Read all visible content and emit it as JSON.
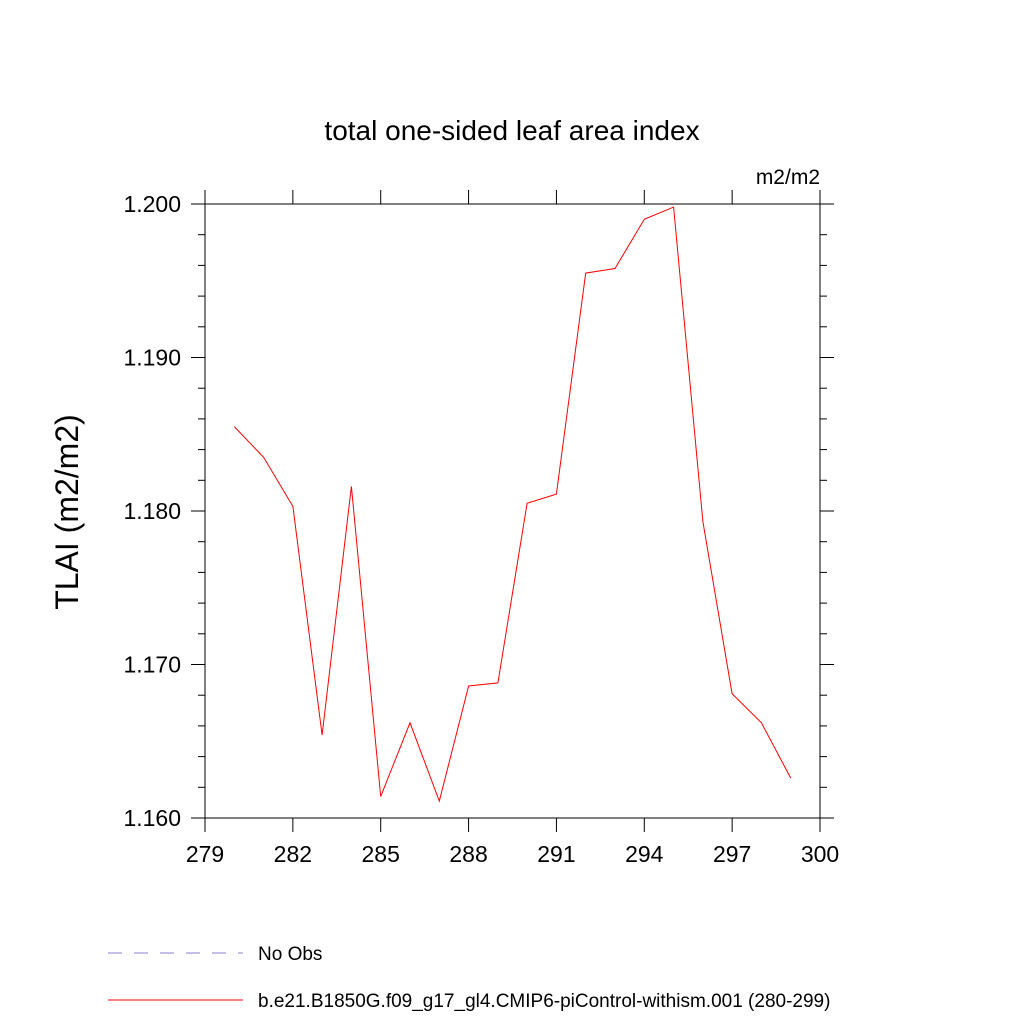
{
  "chart_data": {
    "type": "line",
    "title": "total one-sided leaf area index",
    "units_label": "m2/m2",
    "xlabel": "",
    "ylabel": "TLAI  (m2/m2)",
    "xlim": [
      279,
      300
    ],
    "ylim": [
      1.16,
      1.2
    ],
    "x_ticks": [
      279,
      282,
      285,
      288,
      291,
      294,
      297,
      300
    ],
    "y_ticks": [
      1.16,
      1.17,
      1.18,
      1.19,
      1.2
    ],
    "y_tick_labels": [
      "1.160",
      "1.170",
      "1.180",
      "1.190",
      "1.200"
    ],
    "grid": false,
    "legend_position": "bottom",
    "series": [
      {
        "name": "No Obs",
        "style": "dashed",
        "color": "#8a7fd0",
        "x": [],
        "values": []
      },
      {
        "name": "b.e21.B1850G.f09_g17_gl4.CMIP6-piControl-withism.001 (280-299)",
        "style": "solid",
        "color": "#ff0000",
        "x": [
          280,
          281,
          282,
          283,
          284,
          285,
          286,
          287,
          288,
          289,
          290,
          291,
          292,
          293,
          294,
          295,
          296,
          297,
          298,
          299
        ],
        "values": [
          1.1855,
          1.1835,
          1.1803,
          1.1654,
          1.1816,
          1.1614,
          1.1662,
          1.1611,
          1.1686,
          1.1688,
          1.1805,
          1.1811,
          1.1955,
          1.1958,
          1.199,
          1.1998,
          1.1793,
          1.1681,
          1.1662,
          1.1626
        ]
      }
    ]
  }
}
